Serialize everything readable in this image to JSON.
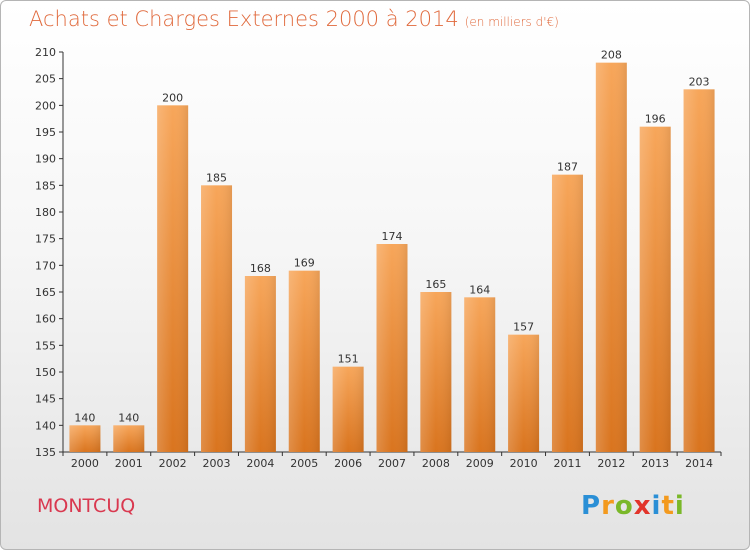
{
  "title": "Achats et Charges Externes 2000 à 2014",
  "subtitle": "(en milliers d'€)",
  "commune": "MONTCUQ",
  "brand": {
    "text": "Proxiti",
    "letters": [
      {
        "ch": "P",
        "color": "#2a8fd6"
      },
      {
        "ch": "r",
        "color": "#f39a1e"
      },
      {
        "ch": "o",
        "color": "#7ab829"
      },
      {
        "ch": "x",
        "color": "#e2342a"
      },
      {
        "ch": "i",
        "color": "#2a8fd6"
      },
      {
        "ch": "t",
        "color": "#f39a1e"
      },
      {
        "ch": "i",
        "color": "#7ab829"
      }
    ]
  },
  "chart_data": {
    "type": "bar",
    "categories": [
      "2000",
      "2001",
      "2002",
      "2003",
      "2004",
      "2005",
      "2006",
      "2007",
      "2008",
      "2009",
      "2010",
      "2011",
      "2012",
      "2013",
      "2014"
    ],
    "values": [
      140,
      140,
      200,
      185,
      168,
      169,
      151,
      174,
      165,
      164,
      157,
      187,
      208,
      196,
      203
    ],
    "title": "Achats et Charges Externes 2000 à 2014",
    "subtitle": "(en milliers d'€)",
    "xlabel": "",
    "ylabel": "",
    "ylim": [
      135,
      210
    ],
    "yticks": [
      135,
      140,
      145,
      150,
      155,
      160,
      165,
      170,
      175,
      180,
      185,
      190,
      195,
      200,
      205,
      210
    ],
    "grid": false,
    "legend": "none",
    "bar_color_top": "#f7a65a",
    "bar_color_bottom": "#d9741e"
  }
}
